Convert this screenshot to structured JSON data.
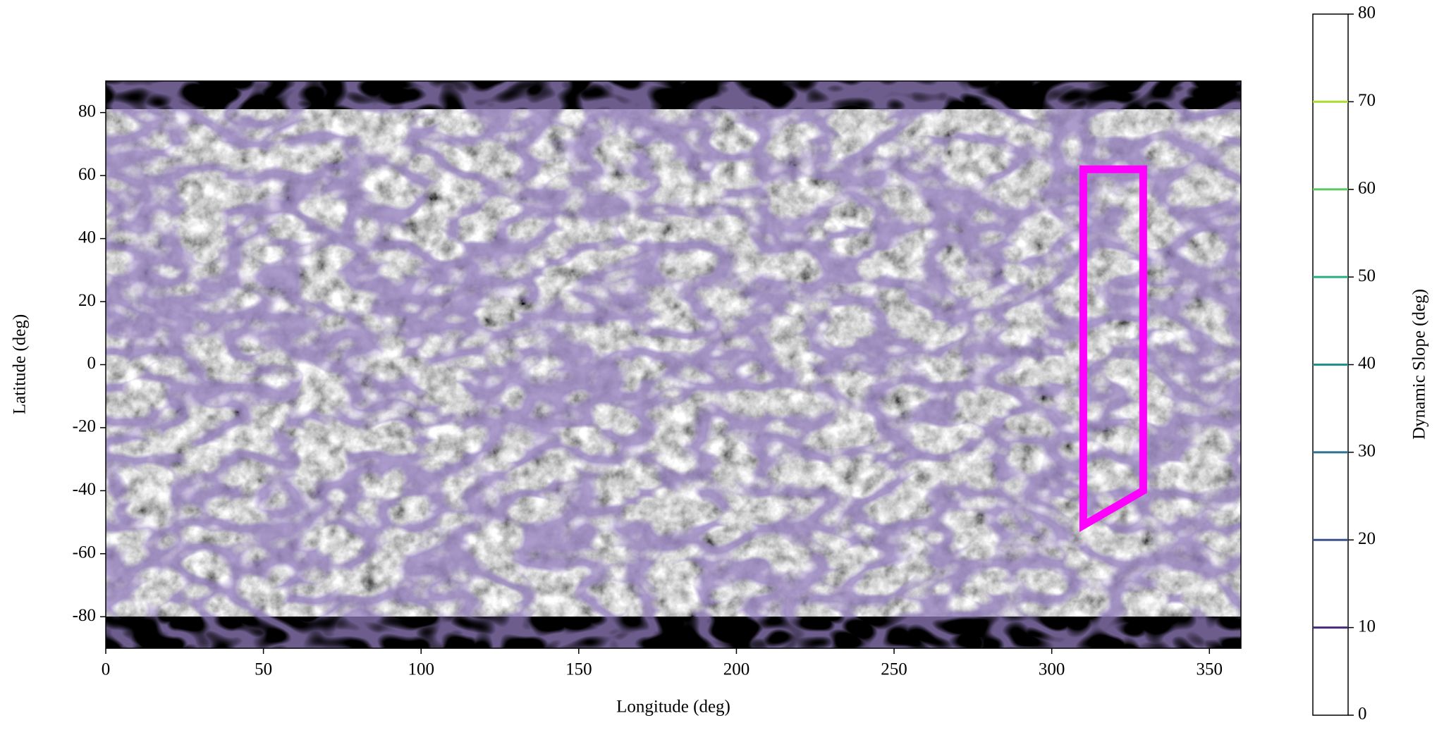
{
  "chart_data": {
    "type": "contour-map",
    "xlabel": "Longitude (deg)",
    "ylabel": "Latitude (deg)",
    "xlim": [
      0,
      360
    ],
    "ylim": [
      -90,
      90
    ],
    "xticks": [
      0,
      50,
      100,
      150,
      200,
      250,
      300,
      350
    ],
    "yticks": [
      -80,
      -60,
      -40,
      -20,
      0,
      20,
      40,
      60,
      80
    ],
    "region": {
      "color": "#ff00ff",
      "x": [
        310,
        329,
        329,
        310,
        310
      ],
      "y": [
        62,
        62,
        -40,
        -51,
        62
      ]
    },
    "colorbar": {
      "label": "Dynamic Slope (deg)",
      "lim": [
        0,
        80
      ],
      "ticks": [
        0,
        10,
        20,
        30,
        40,
        50,
        60,
        70,
        80
      ],
      "levels": [
        10,
        20,
        30,
        40,
        50,
        60,
        70
      ],
      "colors": [
        "#472c7a",
        "#3b528b",
        "#2c728e",
        "#21918c",
        "#28ae80",
        "#5ec962",
        "#addc30"
      ]
    }
  }
}
